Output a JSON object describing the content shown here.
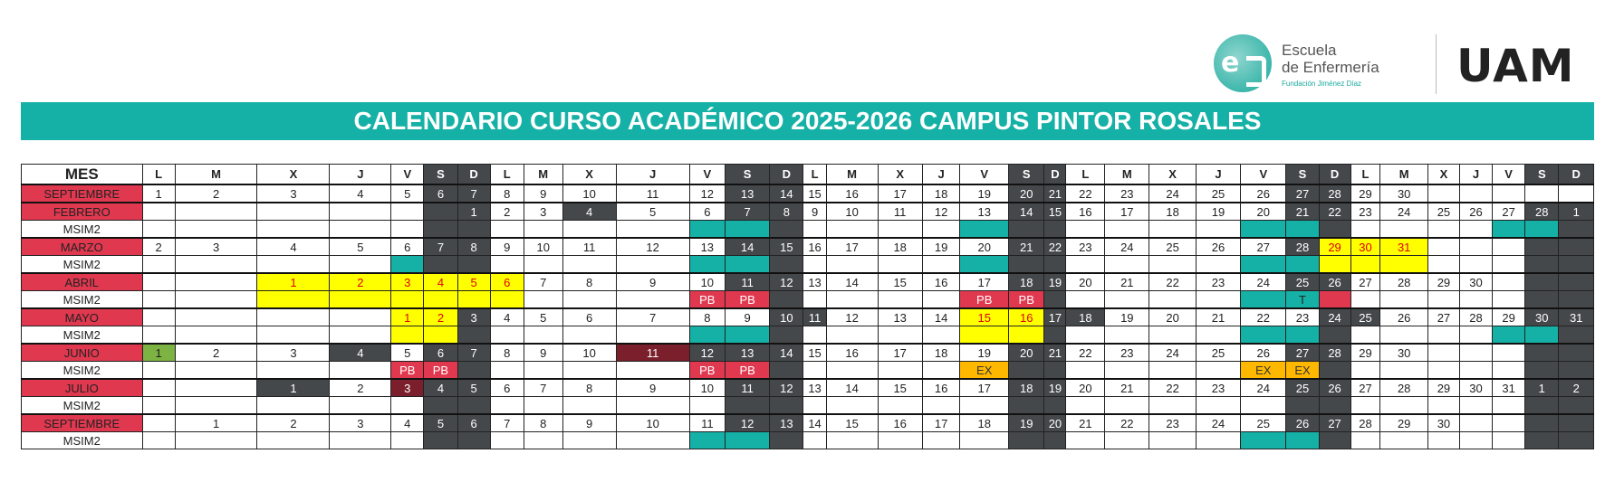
{
  "logo": {
    "school_line1": "Escuela",
    "school_line2": "de Enfermería",
    "school_sub": "Fundación Jiménez Díaz",
    "university": "UAM"
  },
  "title": "CALENDARIO CURSO ACADÉMICO 2025-2026 CAMPUS PINTOR ROSALES",
  "header": {
    "first": "MES",
    "days": [
      "L",
      "M",
      "X",
      "J",
      "V",
      "S",
      "D",
      "L",
      "M",
      "X",
      "J",
      "V",
      "S",
      "D",
      "L",
      "M",
      "X",
      "J",
      "V",
      "S",
      "D",
      "L",
      "M",
      "X",
      "J",
      "V",
      "S",
      "D",
      "L",
      "M",
      "X",
      "J",
      "V",
      "S",
      "D"
    ]
  },
  "colors": {
    "teal": "#16b1a6",
    "dark": "#45484b",
    "red": "#e0384f",
    "yellow": "#ffff00",
    "orange": "#ffb800",
    "green": "#7cb342",
    "maroon": "#7a1f2b"
  },
  "rows": [
    {
      "label": "SEPTIEMBRE",
      "type": "month",
      "cells": [
        "1",
        "2",
        "3",
        "4",
        "5",
        "6",
        "7",
        "8",
        "9",
        "10",
        "11",
        "12",
        "13",
        "14",
        "15",
        "16",
        "17",
        "18",
        "19",
        "20",
        "21",
        "22",
        "23",
        "24",
        "25",
        "26",
        "27",
        "28",
        "29",
        "30",
        "",
        "",
        "",
        "",
        ""
      ],
      "styles": {
        "5": "k",
        "6": "k",
        "12": "k",
        "13": "k",
        "19": "k",
        "20": "k",
        "26": "k",
        "27": "k"
      }
    },
    {
      "label": "FEBRERO",
      "type": "month",
      "cells": [
        "",
        "",
        "",
        "",
        "",
        "",
        "1",
        "2",
        "3",
        "4",
        "5",
        "6",
        "7",
        "8",
        "9",
        "10",
        "11",
        "12",
        "13",
        "14",
        "15",
        "16",
        "17",
        "18",
        "19",
        "20",
        "21",
        "22",
        "23",
        "24",
        "25",
        "26",
        "27",
        "28",
        "1"
      ],
      "styles": {
        "5": "k",
        "6": "k",
        "9": "k",
        "12": "k",
        "13": "k",
        "19": "k",
        "20": "k",
        "26": "k",
        "27": "k",
        "33": "k",
        "34": "k"
      }
    },
    {
      "label": "MSIM2",
      "type": "sim",
      "cells": [
        "",
        "",
        "",
        "",
        "",
        "",
        "",
        "",
        "",
        "",
        "",
        "",
        "",
        "",
        "",
        "",
        "",
        "",
        "",
        "",
        "",
        "",
        "",
        "",
        "",
        "",
        "",
        "",
        "",
        "",
        "",
        "",
        "",
        "",
        ""
      ],
      "styles": {
        "5": "k",
        "6": "k",
        "11": "t",
        "12": "t",
        "13": "k",
        "18": "t",
        "19": "k",
        "20": "k",
        "25": "t",
        "26": "t",
        "27": "k",
        "32": "t",
        "33": "t",
        "34": "k"
      }
    },
    {
      "label": "MARZO",
      "type": "month",
      "cells": [
        "2",
        "3",
        "4",
        "5",
        "6",
        "7",
        "8",
        "9",
        "10",
        "11",
        "12",
        "13",
        "14",
        "15",
        "16",
        "17",
        "18",
        "19",
        "20",
        "21",
        "22",
        "23",
        "24",
        "25",
        "26",
        "27",
        "28",
        "29",
        "30",
        "31",
        "",
        "",
        "",
        "",
        ""
      ],
      "styles": {
        "5": "k",
        "6": "k",
        "12": "k",
        "13": "k",
        "19": "k",
        "20": "k",
        "26": "k",
        "27": "y",
        "28": "y",
        "29": "y",
        "33": "k",
        "34": "k"
      }
    },
    {
      "label": "MSIM2",
      "type": "sim",
      "cells": [
        "",
        "",
        "",
        "",
        "",
        "",
        "",
        "",
        "",
        "",
        "",
        "",
        "",
        "",
        "",
        "",
        "",
        "",
        "",
        "",
        "",
        "",
        "",
        "",
        "",
        "",
        "",
        "",
        "",
        "",
        "",
        "",
        "",
        "",
        ""
      ],
      "styles": {
        "4": "t",
        "5": "k",
        "6": "k",
        "11": "t",
        "12": "t",
        "13": "k",
        "18": "t",
        "19": "k",
        "20": "k",
        "25": "t",
        "26": "t",
        "27": "y",
        "28": "y",
        "29": "y",
        "33": "k",
        "34": "k"
      }
    },
    {
      "label": "ABRIL",
      "type": "month",
      "cells": [
        "",
        "",
        "1",
        "2",
        "3",
        "4",
        "5",
        "6",
        "7",
        "8",
        "9",
        "10",
        "11",
        "12",
        "13",
        "14",
        "15",
        "16",
        "17",
        "18",
        "19",
        "20",
        "21",
        "22",
        "23",
        "24",
        "25",
        "26",
        "27",
        "28",
        "29",
        "30",
        "",
        "",
        ""
      ],
      "styles": {
        "2": "y",
        "3": "y",
        "4": "y",
        "5": "y",
        "6": "y",
        "7": "y",
        "12": "k",
        "13": "k",
        "19": "k",
        "20": "k",
        "26": "k",
        "27": "k",
        "33": "k",
        "34": "k"
      }
    },
    {
      "label": "MSIM2",
      "type": "sim",
      "cells": [
        "",
        "",
        "",
        "",
        "",
        "",
        "",
        "",
        "",
        "",
        "",
        "PB",
        "PB",
        "",
        "",
        "",
        "",
        "",
        "PB",
        "PB",
        "",
        "",
        "",
        "",
        "",
        "",
        "T",
        "",
        "",
        "",
        "",
        "",
        "",
        "",
        ""
      ],
      "styles": {
        "2": "y",
        "3": "y",
        "4": "y",
        "5": "y",
        "6": "y",
        "7": "y",
        "11": "r",
        "12": "r",
        "13": "k",
        "18": "r",
        "19": "r",
        "20": "k",
        "25": "t",
        "26": "t",
        "27": "r",
        "33": "k",
        "34": "k"
      }
    },
    {
      "label": "MAYO",
      "type": "month",
      "cells": [
        "",
        "",
        "",
        "",
        "1",
        "2",
        "3",
        "4",
        "5",
        "6",
        "7",
        "8",
        "9",
        "10",
        "11",
        "12",
        "13",
        "14",
        "15",
        "16",
        "17",
        "18",
        "19",
        "20",
        "21",
        "22",
        "23",
        "24",
        "25",
        "26",
        "27",
        "28",
        "29",
        "30",
        "31"
      ],
      "styles": {
        "4": "y",
        "5": "y",
        "6": "k",
        "13": "k",
        "14": "k",
        "18": "y",
        "19": "y",
        "20": "k",
        "21": "k",
        "27": "k",
        "28": "k",
        "33": "k",
        "34": "k"
      }
    },
    {
      "label": "MSIM2",
      "type": "sim",
      "cells": [
        "",
        "",
        "",
        "",
        "",
        "",
        "",
        "",
        "",
        "",
        "",
        "",
        "",
        "",
        "",
        "",
        "",
        "",
        "",
        "",
        "",
        "",
        "",
        "",
        "",
        "",
        "",
        "",
        "",
        "",
        "",
        "",
        "",
        "",
        ""
      ],
      "styles": {
        "4": "y",
        "5": "y",
        "6": "k",
        "11": "t",
        "12": "t",
        "13": "k",
        "18": "y",
        "19": "y",
        "20": "k",
        "25": "t",
        "26": "t",
        "27": "k",
        "32": "t",
        "33": "t",
        "34": "k"
      }
    },
    {
      "label": "JUNIO",
      "type": "month",
      "cells": [
        "1",
        "2",
        "3",
        "4",
        "5",
        "6",
        "7",
        "8",
        "9",
        "10",
        "11",
        "12",
        "13",
        "14",
        "15",
        "16",
        "17",
        "18",
        "19",
        "20",
        "21",
        "22",
        "23",
        "24",
        "25",
        "26",
        "27",
        "28",
        "29",
        "30",
        "",
        "",
        "",
        "",
        ""
      ],
      "styles": {
        "0": "g",
        "3": "k",
        "5": "k",
        "6": "k",
        "10": "mr",
        "11": "k",
        "12": "k",
        "13": "k",
        "19": "k",
        "20": "k",
        "26": "k",
        "27": "k",
        "33": "k",
        "34": "k"
      }
    },
    {
      "label": "MSIM2",
      "type": "sim",
      "cells": [
        "",
        "",
        "",
        "",
        "PB",
        "PB",
        "",
        "",
        "",
        "",
        "",
        "PB",
        "PB",
        "",
        "",
        "",
        "",
        "",
        "EX",
        "",
        "",
        "",
        "",
        "",
        "",
        "EX",
        "EX",
        "",
        "",
        "",
        "",
        "",
        "",
        "",
        ""
      ],
      "styles": {
        "4": "r",
        "5": "r",
        "6": "k",
        "11": "r",
        "12": "r",
        "13": "k",
        "18": "o",
        "19": "k",
        "20": "k",
        "25": "o",
        "26": "o",
        "27": "k",
        "33": "k",
        "34": "k"
      }
    },
    {
      "label": "JULIO",
      "type": "month",
      "cells": [
        "",
        "",
        "1",
        "2",
        "3",
        "4",
        "5",
        "6",
        "7",
        "8",
        "9",
        "10",
        "11",
        "12",
        "13",
        "14",
        "15",
        "16",
        "17",
        "18",
        "19",
        "20",
        "21",
        "22",
        "23",
        "24",
        "25",
        "26",
        "27",
        "28",
        "29",
        "30",
        "31",
        "1",
        "2"
      ],
      "styles": {
        "2": "k",
        "4": "mr",
        "5": "k",
        "6": "k",
        "12": "k",
        "13": "k",
        "19": "k",
        "20": "k",
        "26": "k",
        "27": "k",
        "33": "k",
        "34": "k"
      }
    },
    {
      "label": "MSIM2",
      "type": "sim",
      "cells": [
        "",
        "",
        "",
        "",
        "",
        "",
        "",
        "",
        "",
        "",
        "",
        "",
        "",
        "",
        "",
        "",
        "",
        "",
        "",
        "",
        "",
        "",
        "",
        "",
        "",
        "",
        "",
        "",
        "",
        "",
        "",
        "",
        "",
        "",
        ""
      ],
      "styles": {
        "5": "k",
        "6": "k",
        "12": "k",
        "13": "k",
        "19": "k",
        "20": "k",
        "26": "k",
        "27": "k",
        "33": "k",
        "34": "k"
      }
    },
    {
      "label": "SEPTIEMBRE",
      "type": "month",
      "cells": [
        "",
        "1",
        "2",
        "3",
        "4",
        "5",
        "6",
        "7",
        "8",
        "9",
        "10",
        "11",
        "12",
        "13",
        "14",
        "15",
        "16",
        "17",
        "18",
        "19",
        "20",
        "21",
        "22",
        "23",
        "24",
        "25",
        "26",
        "27",
        "28",
        "29",
        "30",
        "",
        "",
        "",
        ""
      ],
      "styles": {
        "5": "k",
        "6": "k",
        "12": "k",
        "13": "k",
        "19": "k",
        "20": "k",
        "26": "k",
        "27": "k",
        "33": "k",
        "34": "k"
      }
    },
    {
      "label": "MSIM2",
      "type": "sim",
      "cells": [
        "",
        "",
        "",
        "",
        "",
        "",
        "",
        "",
        "",
        "",
        "",
        "",
        "",
        "",
        "",
        "",
        "",
        "",
        "",
        "",
        "",
        "",
        "",
        "",
        "",
        "",
        "",
        "",
        "",
        "",
        "",
        "",
        "",
        "",
        ""
      ],
      "styles": {
        "5": "k",
        "6": "k",
        "11": "t",
        "12": "t",
        "13": "k",
        "19": "k",
        "20": "k",
        "25": "t",
        "26": "t",
        "27": "k",
        "33": "k",
        "34": "k"
      }
    }
  ]
}
